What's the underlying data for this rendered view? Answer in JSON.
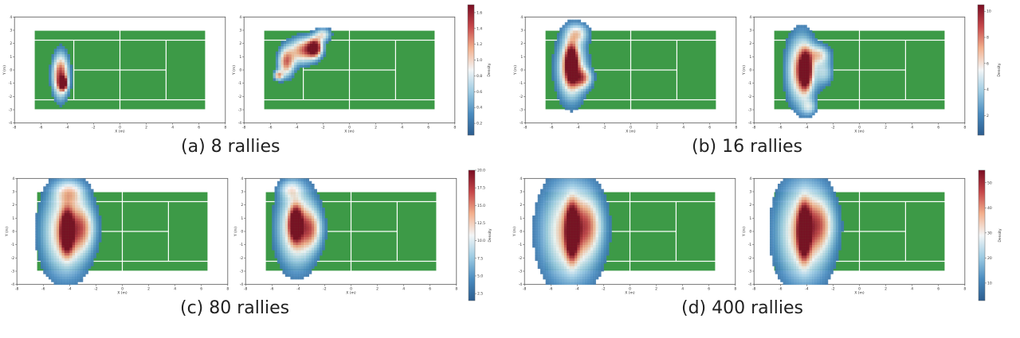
{
  "theme": {
    "court_green": "#3d9a47",
    "court_line": "#ffffff",
    "colormap": "RdBu_r",
    "cmap_stops": [
      "#2c5d8f",
      "#4a8cc0",
      "#9ccbe3",
      "#f3f6f7",
      "#f3b08d",
      "#c6474a",
      "#7a0d22"
    ]
  },
  "chart_data": [
    {
      "panel": "a",
      "type": "heatmap",
      "caption": "(a) 8 rallies",
      "xlabel": "X (m)",
      "ylabel": "Y (m)",
      "xlim": [
        -8,
        8
      ],
      "ylim": [
        -4,
        4
      ],
      "xticks": [
        "-8",
        "-6",
        "-4",
        "-2",
        "0",
        "2",
        "4",
        "6",
        "8"
      ],
      "yticks": [
        "-4",
        "-3",
        "-2",
        "-1",
        "0",
        "1",
        "2",
        "3",
        "4"
      ],
      "colorbar": {
        "label": "Density",
        "min": 0.05,
        "max": 1.7,
        "ticks": [
          "0.2",
          "0.4",
          "0.6",
          "0.8",
          "1.0",
          "1.2",
          "1.4",
          "1.6"
        ]
      },
      "subplots": [
        {
          "name": "left",
          "blobs": [
            {
              "x": -4.5,
              "y": -0.4,
              "sx": 0.45,
              "sy": 1.2,
              "w": 0.9
            },
            {
              "x": -4.3,
              "y": -1.0,
              "sx": 0.2,
              "sy": 0.3,
              "w": 1.0
            }
          ]
        },
        {
          "name": "right",
          "blobs": [
            {
              "x": -4.8,
              "y": 0.6,
              "sx": 0.45,
              "sy": 0.8,
              "w": 0.75
            },
            {
              "x": -3.5,
              "y": 1.5,
              "sx": 0.7,
              "sy": 0.7,
              "w": 0.75
            },
            {
              "x": -2.6,
              "y": 1.7,
              "sx": 0.4,
              "sy": 0.5,
              "w": 0.95
            },
            {
              "x": -5.4,
              "y": -0.4,
              "sx": 0.25,
              "sy": 0.25,
              "w": 0.6
            },
            {
              "x": -2.0,
              "y": 2.7,
              "sx": 0.45,
              "sy": 0.35,
              "w": 0.5
            }
          ]
        }
      ]
    },
    {
      "panel": "b",
      "type": "heatmap",
      "caption": "(b) 16 rallies",
      "xlabel": "X (m)",
      "ylabel": "Y (m)",
      "xlim": [
        -8,
        8
      ],
      "ylim": [
        -4,
        4
      ],
      "xticks": [
        "-8",
        "-6",
        "-4",
        "-2",
        "0",
        "2",
        "4",
        "6",
        "8"
      ],
      "yticks": [
        "-4",
        "-3",
        "-2",
        "-1",
        "0",
        "1",
        "2",
        "3",
        "4"
      ],
      "colorbar": {
        "label": "Density",
        "min": 0.5,
        "max": 10.5,
        "ticks": [
          "2",
          "4",
          "6",
          "8",
          "10"
        ]
      },
      "subplots": [
        {
          "name": "left",
          "blobs": [
            {
              "x": -4.5,
              "y": 0.2,
              "sx": 0.8,
              "sy": 1.8,
              "w": 0.75
            },
            {
              "x": -4.5,
              "y": 0.5,
              "sx": 0.3,
              "sy": 0.9,
              "w": 0.95
            },
            {
              "x": -3.6,
              "y": -0.6,
              "sx": 0.5,
              "sy": 0.5,
              "w": 0.5
            },
            {
              "x": -4.0,
              "y": 2.8,
              "sx": 0.6,
              "sy": 0.5,
              "w": 0.4
            }
          ]
        },
        {
          "name": "right",
          "blobs": [
            {
              "x": -4.4,
              "y": 0.0,
              "sx": 0.8,
              "sy": 1.9,
              "w": 0.75
            },
            {
              "x": -4.1,
              "y": 0.0,
              "sx": 0.3,
              "sy": 0.9,
              "w": 0.95
            },
            {
              "x": -3.0,
              "y": 1.2,
              "sx": 0.6,
              "sy": 0.5,
              "w": 0.45
            },
            {
              "x": -2.6,
              "y": -0.2,
              "sx": 0.5,
              "sy": 0.7,
              "w": 0.35
            },
            {
              "x": -3.8,
              "y": -2.8,
              "sx": 0.4,
              "sy": 0.4,
              "w": 0.3
            }
          ]
        }
      ]
    },
    {
      "panel": "c",
      "type": "heatmap",
      "caption": "(c) 80 rallies",
      "xlabel": "X (m)",
      "ylabel": "Y (m)",
      "xlim": [
        -8,
        8
      ],
      "ylim": [
        -4,
        4
      ],
      "xticks": [
        "-8",
        "-6",
        "-4",
        "-2",
        "0",
        "2",
        "4",
        "6",
        "8"
      ],
      "yticks": [
        "-4",
        "-3",
        "-2",
        "-1",
        "0",
        "1",
        "2",
        "3",
        "4"
      ],
      "colorbar": {
        "label": "Density",
        "min": 1.5,
        "max": 20.0,
        "ticks": [
          "2.5",
          "5.0",
          "7.5",
          "10.0",
          "12.5",
          "15.0",
          "17.5",
          "20.0"
        ]
      },
      "subplots": [
        {
          "name": "left",
          "blobs": [
            {
              "x": -4.3,
              "y": 0.0,
              "sx": 1.3,
              "sy": 2.4,
              "w": 0.7
            },
            {
              "x": -4.2,
              "y": 0.0,
              "sx": 0.3,
              "sy": 1.0,
              "w": 1.0
            },
            {
              "x": -3.0,
              "y": 0.3,
              "sx": 0.7,
              "sy": 1.2,
              "w": 0.4
            },
            {
              "x": -4.0,
              "y": 3.0,
              "sx": 0.8,
              "sy": 0.6,
              "w": 0.35
            }
          ]
        },
        {
          "name": "right",
          "blobs": [
            {
              "x": -4.1,
              "y": 0.3,
              "sx": 1.1,
              "sy": 2.2,
              "w": 0.7
            },
            {
              "x": -4.2,
              "y": 0.6,
              "sx": 0.3,
              "sy": 0.8,
              "w": 0.95
            },
            {
              "x": -3.0,
              "y": 0.2,
              "sx": 0.6,
              "sy": 1.0,
              "w": 0.4
            },
            {
              "x": -4.6,
              "y": 3.2,
              "sx": 0.6,
              "sy": 0.5,
              "w": 0.3
            }
          ]
        }
      ]
    },
    {
      "panel": "d",
      "type": "heatmap",
      "caption": "(d) 400 rallies",
      "xlabel": "X (m)",
      "ylabel": "Y (m)",
      "xlim": [
        -8,
        8
      ],
      "ylim": [
        -4,
        4
      ],
      "xticks": [
        "-8",
        "-6",
        "-4",
        "-2",
        "0",
        "2",
        "4",
        "6",
        "8"
      ],
      "yticks": [
        "-4",
        "-3",
        "-2",
        "-1",
        "0",
        "1",
        "2",
        "3",
        "4"
      ],
      "colorbar": {
        "label": "Density",
        "min": 3,
        "max": 55,
        "ticks": [
          "10",
          "20",
          "30",
          "40",
          "50"
        ]
      },
      "subplots": [
        {
          "name": "left",
          "blobs": [
            {
              "x": -4.5,
              "y": 0.0,
              "sx": 1.6,
              "sy": 2.8,
              "w": 0.7
            },
            {
              "x": -4.4,
              "y": 0.0,
              "sx": 0.3,
              "sy": 1.3,
              "w": 1.0
            },
            {
              "x": -3.2,
              "y": 0.5,
              "sx": 0.8,
              "sy": 1.4,
              "w": 0.35
            }
          ]
        },
        {
          "name": "right",
          "blobs": [
            {
              "x": -4.2,
              "y": 0.0,
              "sx": 1.5,
              "sy": 2.8,
              "w": 0.7
            },
            {
              "x": -4.2,
              "y": 0.0,
              "sx": 0.3,
              "sy": 1.3,
              "w": 1.0
            },
            {
              "x": -3.0,
              "y": 0.6,
              "sx": 0.8,
              "sy": 1.3,
              "w": 0.35
            }
          ]
        }
      ]
    }
  ]
}
